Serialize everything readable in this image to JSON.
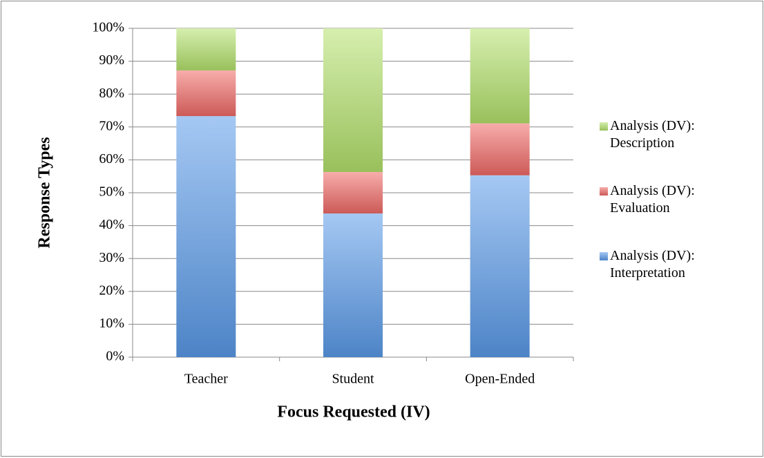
{
  "chart_data": {
    "type": "stacked_bar",
    "xlabel": "Focus Requested (IV)",
    "ylabel": "Response Types",
    "categories": [
      "Teacher",
      "Student",
      "Open-Ended"
    ],
    "series": [
      {
        "name": "Analysis (DV): Interpretation",
        "color": "#5b9bea",
        "values": [
          73.3,
          43.7,
          55.3
        ]
      },
      {
        "name": "Analysis (DV): Evaluation",
        "color": "#f06a66",
        "values": [
          13.9,
          12.6,
          15.8
        ]
      },
      {
        "name": "Analysis (DV): Description",
        "color": "#b4e26c",
        "values": [
          12.8,
          43.7,
          28.9
        ]
      }
    ],
    "ylim": [
      0,
      100
    ],
    "yticks": [
      {
        "value": 0,
        "label": "0%"
      },
      {
        "value": 10,
        "label": "10%"
      },
      {
        "value": 20,
        "label": "20%"
      },
      {
        "value": 30,
        "label": "30%"
      },
      {
        "value": 40,
        "label": "40%"
      },
      {
        "value": 50,
        "label": "50%"
      },
      {
        "value": 60,
        "label": "60%"
      },
      {
        "value": 70,
        "label": "70%"
      },
      {
        "value": 80,
        "label": "80%"
      },
      {
        "value": 90,
        "label": "90%"
      },
      {
        "value": 100,
        "label": "100%"
      }
    ],
    "grid": true,
    "legend": "right"
  }
}
